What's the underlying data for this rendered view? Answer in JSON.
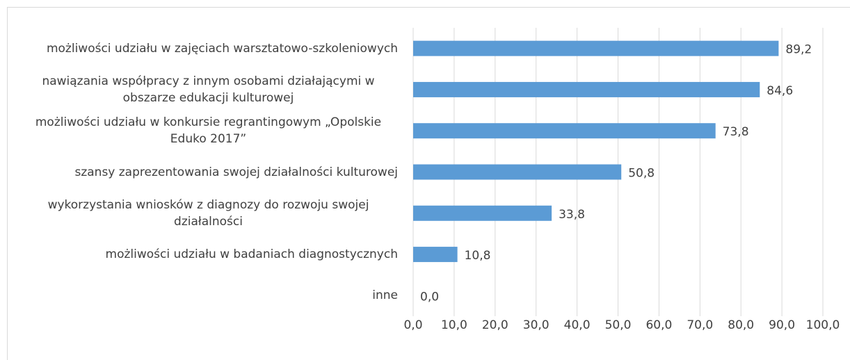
{
  "chart_data": {
    "type": "bar",
    "orientation": "horizontal",
    "categories": [
      "możliwości udziału w zajęciach warsztatowo-szkoleniowych",
      "nawiązania współpracy z innym osobami działającymi w obszarze edukacji kulturowej",
      "możliwości udziału w konkursie regrantingowym „Opolskie Eduko 2017”",
      "szansy zaprezentowania swojej działalności kulturowej",
      "wykorzystania wniosków z diagnozy do rozwoju swojej działalności",
      "możliwości udziału w badaniach diagnostycznych",
      "inne"
    ],
    "values": [
      89.2,
      84.6,
      73.8,
      50.8,
      33.8,
      10.8,
      0.0
    ],
    "value_labels": [
      "89,2",
      "84,6",
      "73,8",
      "50,8",
      "33,8",
      "10,8",
      "0,0"
    ],
    "color": "#5b9bd5",
    "xlim": [
      0,
      100
    ],
    "xticks": [
      {
        "value": 0,
        "label": "0,0"
      },
      {
        "value": 10,
        "label": "10,0"
      },
      {
        "value": 20,
        "label": "20,0"
      },
      {
        "value": 30,
        "label": "30,0"
      },
      {
        "value": 40,
        "label": "40,0"
      },
      {
        "value": 50,
        "label": "50,0"
      },
      {
        "value": 60,
        "label": "60,0"
      },
      {
        "value": 70,
        "label": "70,0"
      },
      {
        "value": 80,
        "label": "80,0"
      },
      {
        "value": 90,
        "label": "90,0"
      },
      {
        "value": 100,
        "label": "100,0"
      }
    ],
    "grid": true
  }
}
